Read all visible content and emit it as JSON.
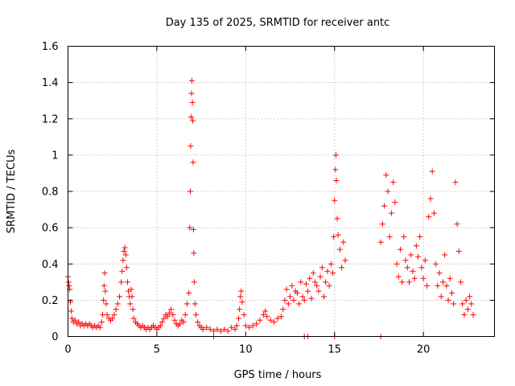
{
  "chart_data": {
    "type": "scatter",
    "title": "Day 135 of 2025, SRMTID for receiver antc",
    "xlabel": "GPS time / hours",
    "ylabel": "SRMTID / TECUs",
    "xlim": [
      0,
      24
    ],
    "ylim": [
      0,
      1.6
    ],
    "xticks": [
      0,
      5,
      10,
      15,
      20
    ],
    "xtick_labels": [
      "0",
      "5",
      "10",
      "15",
      "20"
    ],
    "yticks": [
      0,
      0.2,
      0.4,
      0.6,
      0.8,
      1.0,
      1.2,
      1.4,
      1.6
    ],
    "ytick_labels": [
      "0",
      "0.2",
      "0.4",
      "0.6",
      "0.8",
      "1",
      "1.2",
      "1.4",
      "1.6"
    ],
    "grid": true,
    "marker": "+",
    "color": "#ff0000",
    "series": [
      {
        "name": "SRMTID",
        "points": [
          [
            0.0,
            0.33
          ],
          [
            0.03,
            0.3
          ],
          [
            0.06,
            0.28
          ],
          [
            0.1,
            0.26
          ],
          [
            0.14,
            0.19
          ],
          [
            0.18,
            0.14
          ],
          [
            0.22,
            0.1
          ],
          [
            0.3,
            0.08
          ],
          [
            0.4,
            0.09
          ],
          [
            0.5,
            0.07
          ],
          [
            0.6,
            0.08
          ],
          [
            0.7,
            0.06
          ],
          [
            0.8,
            0.07
          ],
          [
            0.9,
            0.06
          ],
          [
            1.0,
            0.07
          ],
          [
            1.1,
            0.06
          ],
          [
            1.2,
            0.07
          ],
          [
            1.3,
            0.06
          ],
          [
            1.4,
            0.05
          ],
          [
            1.5,
            0.06
          ],
          [
            1.6,
            0.05
          ],
          [
            1.7,
            0.06
          ],
          [
            1.8,
            0.05
          ],
          [
            1.9,
            0.08
          ],
          [
            1.95,
            0.12
          ],
          [
            2.0,
            0.2
          ],
          [
            2.03,
            0.28
          ],
          [
            2.06,
            0.35
          ],
          [
            2.1,
            0.25
          ],
          [
            2.15,
            0.18
          ],
          [
            2.2,
            0.12
          ],
          [
            2.3,
            0.1
          ],
          [
            2.4,
            0.09
          ],
          [
            2.5,
            0.1
          ],
          [
            2.6,
            0.12
          ],
          [
            2.7,
            0.15
          ],
          [
            2.8,
            0.18
          ],
          [
            2.9,
            0.22
          ],
          [
            3.0,
            0.3
          ],
          [
            3.05,
            0.36
          ],
          [
            3.1,
            0.42
          ],
          [
            3.15,
            0.47
          ],
          [
            3.2,
            0.49
          ],
          [
            3.25,
            0.45
          ],
          [
            3.3,
            0.38
          ],
          [
            3.35,
            0.3
          ],
          [
            3.4,
            0.25
          ],
          [
            3.45,
            0.22
          ],
          [
            3.5,
            0.18
          ],
          [
            3.55,
            0.26
          ],
          [
            3.6,
            0.22
          ],
          [
            3.65,
            0.15
          ],
          [
            3.7,
            0.1
          ],
          [
            3.8,
            0.08
          ],
          [
            3.9,
            0.07
          ],
          [
            4.0,
            0.06
          ],
          [
            4.1,
            0.05
          ],
          [
            4.2,
            0.06
          ],
          [
            4.3,
            0.05
          ],
          [
            4.4,
            0.04
          ],
          [
            4.5,
            0.05
          ],
          [
            4.6,
            0.04
          ],
          [
            4.7,
            0.05
          ],
          [
            4.8,
            0.06
          ],
          [
            4.9,
            0.05
          ],
          [
            5.0,
            0.04
          ],
          [
            5.1,
            0.05
          ],
          [
            5.2,
            0.06
          ],
          [
            5.3,
            0.08
          ],
          [
            5.4,
            0.1
          ],
          [
            5.5,
            0.12
          ],
          [
            5.6,
            0.11
          ],
          [
            5.7,
            0.13
          ],
          [
            5.8,
            0.15
          ],
          [
            5.9,
            0.12
          ],
          [
            6.0,
            0.09
          ],
          [
            6.1,
            0.07
          ],
          [
            6.2,
            0.06
          ],
          [
            6.3,
            0.07
          ],
          [
            6.4,
            0.09
          ],
          [
            6.5,
            0.08
          ],
          [
            6.6,
            0.12
          ],
          [
            6.7,
            0.18
          ],
          [
            6.8,
            0.24
          ],
          [
            6.85,
            0.6
          ],
          [
            6.88,
            0.8
          ],
          [
            6.9,
            1.05
          ],
          [
            6.93,
            1.21
          ],
          [
            6.95,
            1.34
          ],
          [
            6.97,
            1.41
          ],
          [
            7.0,
            1.29
          ],
          [
            7.02,
            1.19
          ],
          [
            7.04,
            0.96
          ],
          [
            7.06,
            0.59
          ],
          [
            7.08,
            0.46
          ],
          [
            7.1,
            0.3
          ],
          [
            7.15,
            0.18
          ],
          [
            7.2,
            0.12
          ],
          [
            7.3,
            0.08
          ],
          [
            7.4,
            0.06
          ],
          [
            7.5,
            0.05
          ],
          [
            7.6,
            0.04
          ],
          [
            7.8,
            0.05
          ],
          [
            8.0,
            0.04
          ],
          [
            8.2,
            0.03
          ],
          [
            8.4,
            0.04
          ],
          [
            8.6,
            0.03
          ],
          [
            8.8,
            0.04
          ],
          [
            9.0,
            0.03
          ],
          [
            9.2,
            0.05
          ],
          [
            9.4,
            0.04
          ],
          [
            9.5,
            0.06
          ],
          [
            9.6,
            0.1
          ],
          [
            9.65,
            0.15
          ],
          [
            9.7,
            0.22
          ],
          [
            9.75,
            0.25
          ],
          [
            9.8,
            0.19
          ],
          [
            9.9,
            0.12
          ],
          [
            10.0,
            0.06
          ],
          [
            10.2,
            0.05
          ],
          [
            10.4,
            0.06
          ],
          [
            10.6,
            0.07
          ],
          [
            10.8,
            0.09
          ],
          [
            11.0,
            0.12
          ],
          [
            11.1,
            0.14
          ],
          [
            11.2,
            0.11
          ],
          [
            11.4,
            0.09
          ],
          [
            11.6,
            0.08
          ],
          [
            11.8,
            0.1
          ],
          [
            12.0,
            0.11
          ],
          [
            12.1,
            0.15
          ],
          [
            12.2,
            0.2
          ],
          [
            12.3,
            0.26
          ],
          [
            12.4,
            0.18
          ],
          [
            12.5,
            0.22
          ],
          [
            12.6,
            0.28
          ],
          [
            12.7,
            0.2
          ],
          [
            12.8,
            0.25
          ],
          [
            12.9,
            0.24
          ],
          [
            13.0,
            0.18
          ],
          [
            13.1,
            0.3
          ],
          [
            13.2,
            0.22
          ],
          [
            13.3,
            0.2
          ],
          [
            13.4,
            0.29
          ],
          [
            13.5,
            0.25
          ],
          [
            13.6,
            0.32
          ],
          [
            13.7,
            0.21
          ],
          [
            13.8,
            0.35
          ],
          [
            13.9,
            0.3
          ],
          [
            14.0,
            0.28
          ],
          [
            14.1,
            0.25
          ],
          [
            14.2,
            0.33
          ],
          [
            14.3,
            0.38
          ],
          [
            14.4,
            0.22
          ],
          [
            14.5,
            0.3
          ],
          [
            14.6,
            0.36
          ],
          [
            14.7,
            0.28
          ],
          [
            14.8,
            0.4
          ],
          [
            14.9,
            0.35
          ],
          [
            14.95,
            0.55
          ],
          [
            15.0,
            0.75
          ],
          [
            15.05,
            0.92
          ],
          [
            15.08,
            1.0
          ],
          [
            15.1,
            0.86
          ],
          [
            15.15,
            0.65
          ],
          [
            15.2,
            0.56
          ],
          [
            15.3,
            0.48
          ],
          [
            15.4,
            0.38
          ],
          [
            15.5,
            0.52
          ],
          [
            15.6,
            0.42
          ],
          [
            17.6,
            0.52
          ],
          [
            17.7,
            0.62
          ],
          [
            17.8,
            0.72
          ],
          [
            17.9,
            0.89
          ],
          [
            18.0,
            0.8
          ],
          [
            18.1,
            0.55
          ],
          [
            18.2,
            0.68
          ],
          [
            18.3,
            0.85
          ],
          [
            18.4,
            0.74
          ],
          [
            18.5,
            0.4
          ],
          [
            18.6,
            0.33
          ],
          [
            18.7,
            0.48
          ],
          [
            18.8,
            0.3
          ],
          [
            18.9,
            0.55
          ],
          [
            19.0,
            0.42
          ],
          [
            19.1,
            0.38
          ],
          [
            19.2,
            0.3
          ],
          [
            19.3,
            0.45
          ],
          [
            19.4,
            0.36
          ],
          [
            19.5,
            0.32
          ],
          [
            19.6,
            0.5
          ],
          [
            19.7,
            0.44
          ],
          [
            19.8,
            0.55
          ],
          [
            19.9,
            0.38
          ],
          [
            20.0,
            0.32
          ],
          [
            20.1,
            0.42
          ],
          [
            20.2,
            0.28
          ],
          [
            20.3,
            0.66
          ],
          [
            20.4,
            0.76
          ],
          [
            20.5,
            0.91
          ],
          [
            20.6,
            0.68
          ],
          [
            20.7,
            0.4
          ],
          [
            20.8,
            0.28
          ],
          [
            20.9,
            0.35
          ],
          [
            21.0,
            0.22
          ],
          [
            21.1,
            0.3
          ],
          [
            21.2,
            0.45
          ],
          [
            21.3,
            0.28
          ],
          [
            21.4,
            0.2
          ],
          [
            21.5,
            0.32
          ],
          [
            21.6,
            0.24
          ],
          [
            21.7,
            0.18
          ],
          [
            21.8,
            0.85
          ],
          [
            21.9,
            0.62
          ],
          [
            22.0,
            0.47
          ],
          [
            22.1,
            0.3
          ],
          [
            22.2,
            0.18
          ],
          [
            22.3,
            0.12
          ],
          [
            22.4,
            0.2
          ],
          [
            22.5,
            0.15
          ],
          [
            22.6,
            0.22
          ],
          [
            22.7,
            0.18
          ],
          [
            22.8,
            0.12
          ],
          [
            8.2,
            0.0
          ],
          [
            13.3,
            0.0
          ],
          [
            13.5,
            0.0
          ],
          [
            15.0,
            0.0
          ],
          [
            17.6,
            0.0
          ]
        ]
      }
    ]
  }
}
